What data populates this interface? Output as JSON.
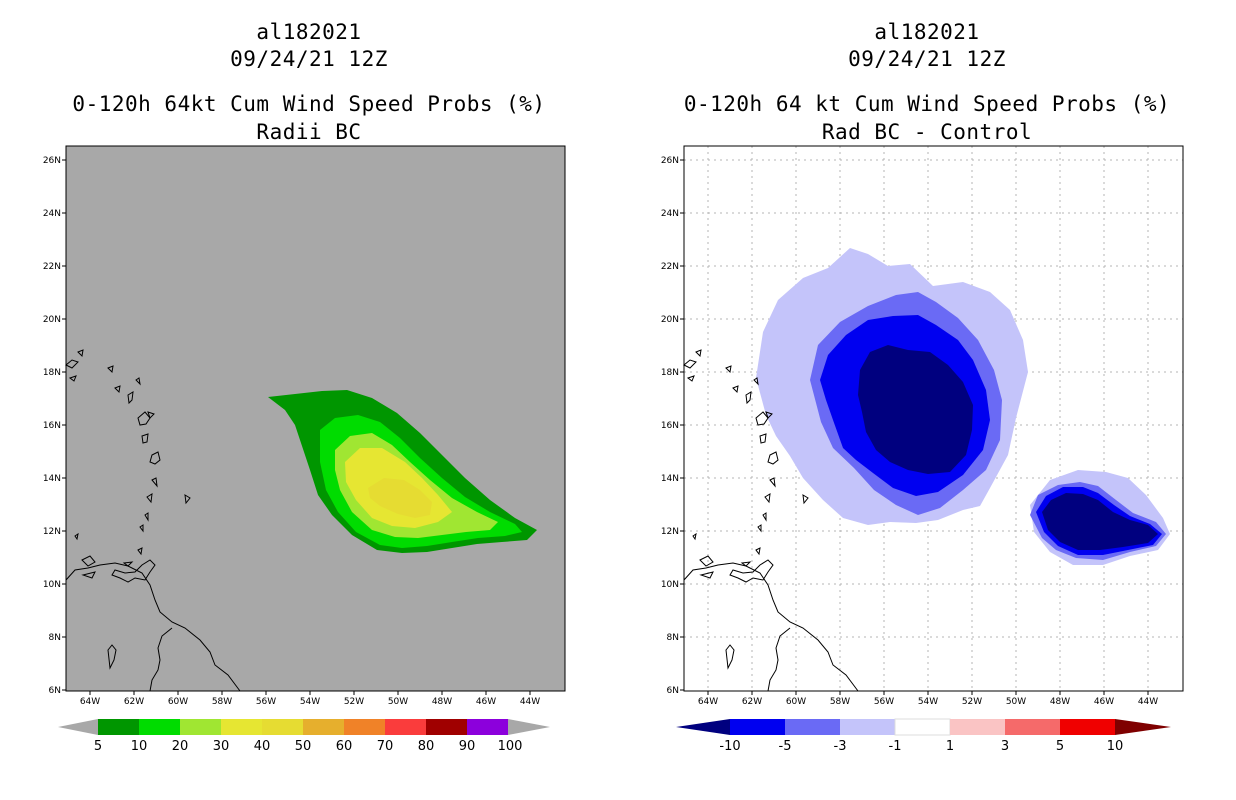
{
  "panels": [
    {
      "storm_id": "al182021",
      "datetime": "09/24/21 12Z",
      "title": "0-120h 64kt Cum Wind Speed Probs (%)",
      "subtitle": "Radii BC",
      "background_color": "#a8a8a8",
      "colorbar": {
        "labels": [
          "5",
          "10",
          "20",
          "30",
          "40",
          "50",
          "60",
          "70",
          "80",
          "90",
          "100"
        ],
        "colors": [
          "#009600",
          "#00dc00",
          "#a0e632",
          "#e6e632",
          "#e6dc32",
          "#e6af2d",
          "#f08228",
          "#fa3c3c",
          "#a00000",
          "#8c00dc"
        ]
      }
    },
    {
      "storm_id": "al182021",
      "datetime": "09/24/21 12Z",
      "title": "0-120h 64 kt Cum Wind Speed Probs (%)",
      "subtitle": "Rad BC - Control",
      "background_color": "#ffffff",
      "colorbar": {
        "labels": [
          "-10",
          "-5",
          "-3",
          "-1",
          "1",
          "3",
          "5",
          "10"
        ],
        "colors": [
          "#00007f",
          "#0000f0",
          "#6a6af5",
          "#c4c4fa",
          "#ffffff",
          "#fac4c4",
          "#f56a6a",
          "#f00000",
          "#7f0000"
        ]
      }
    }
  ],
  "map": {
    "lat_labels": [
      "26N",
      "24N",
      "22N",
      "20N",
      "18N",
      "16N",
      "14N",
      "12N",
      "10N",
      "8N",
      "6N"
    ],
    "lon_labels": [
      "64W",
      "62W",
      "60W",
      "58W",
      "56W",
      "54W",
      "52W",
      "50W",
      "48W",
      "46W",
      "44W"
    ]
  }
}
